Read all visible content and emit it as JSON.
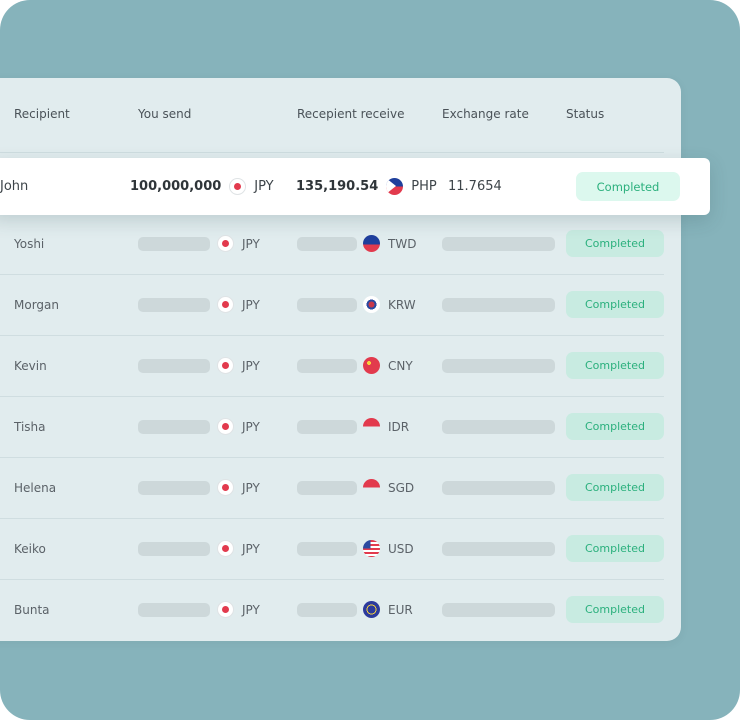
{
  "headers": {
    "recipient": "Recipient",
    "send": "You send",
    "receive": "Recepient receive",
    "rate": "Exchange rate",
    "status": "Status"
  },
  "highlight": {
    "recipient": "John",
    "send_amount": "100,000,000",
    "send_currency": "JPY",
    "send_flag": "japan-flag-icon",
    "receive_amount": "135,190.54",
    "receive_currency": "PHP",
    "receive_flag": "philippines-flag-icon",
    "rate": "11.7654",
    "status": "Completed"
  },
  "rows": [
    {
      "recipient": "Yoshi",
      "send_currency": "JPY",
      "receive_currency": "TWD",
      "receive_flag": "taiwan-flag-icon",
      "status": "Completed"
    },
    {
      "recipient": "Morgan",
      "send_currency": "JPY",
      "receive_currency": "KRW",
      "receive_flag": "south-korea-flag-icon",
      "status": "Completed"
    },
    {
      "recipient": "Kevin",
      "send_currency": "JPY",
      "receive_currency": "CNY",
      "receive_flag": "china-flag-icon",
      "status": "Completed"
    },
    {
      "recipient": "Tisha",
      "send_currency": "JPY",
      "receive_currency": "IDR",
      "receive_flag": "indonesia-flag-icon",
      "status": "Completed"
    },
    {
      "recipient": "Helena",
      "send_currency": "JPY",
      "receive_currency": "SGD",
      "receive_flag": "singapore-flag-icon",
      "status": "Completed"
    },
    {
      "recipient": "Keiko",
      "send_currency": "JPY",
      "receive_currency": "USD",
      "receive_flag": "usa-flag-icon",
      "status": "Completed"
    },
    {
      "recipient": "Bunta",
      "send_currency": "JPY",
      "receive_currency": "EUR",
      "receive_flag": "eu-flag-icon",
      "status": "Completed"
    }
  ],
  "colors": {
    "background": "#86b3bb",
    "card": "#e1ecee",
    "status_text": "#2bb07d",
    "status_bg": "#c8ebe1"
  }
}
